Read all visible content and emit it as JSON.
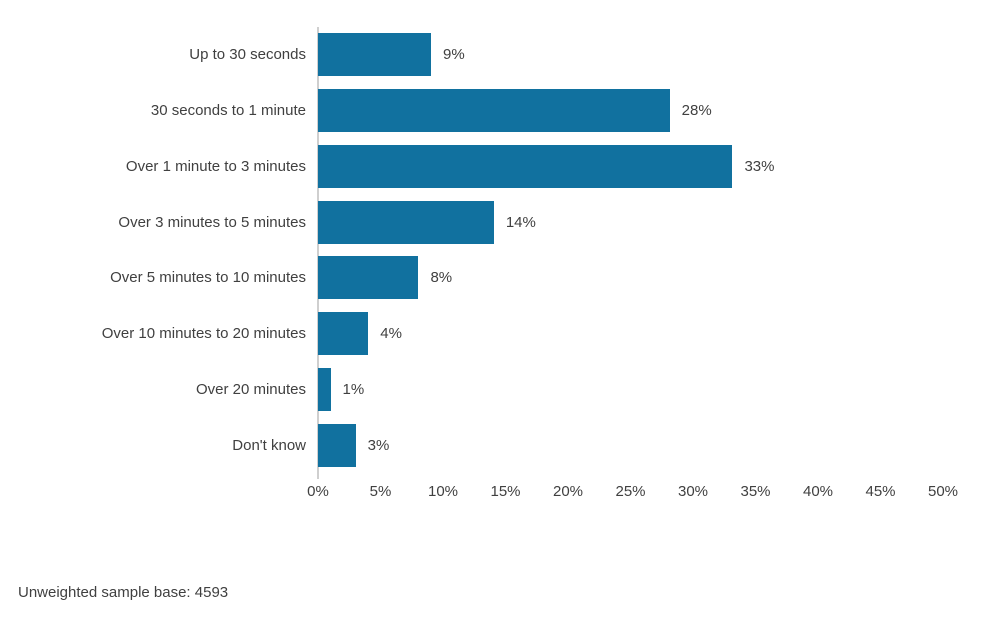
{
  "chart_data": {
    "type": "bar",
    "orientation": "horizontal",
    "categories": [
      "Up to 30 seconds",
      "30 seconds to 1 minute",
      "Over 1 minute to 3 minutes",
      "Over 3 minutes to 5 minutes",
      "Over 5 minutes to 10 minutes",
      "Over 10 minutes to 20 minutes",
      "Over 20 minutes",
      "Don't know"
    ],
    "values": [
      9,
      28,
      33,
      14,
      8,
      4,
      1,
      3
    ],
    "value_labels": [
      "9%",
      "28%",
      "33%",
      "14%",
      "8%",
      "4%",
      "1%",
      "3%"
    ],
    "x_ticks": [
      "0%",
      "5%",
      "10%",
      "15%",
      "20%",
      "25%",
      "30%",
      "35%",
      "40%",
      "45%",
      "50%"
    ],
    "xlim": [
      0,
      50
    ],
    "title": "",
    "xlabel": "",
    "ylabel": "",
    "grid": false,
    "legend": false,
    "bar_color": "#11719f",
    "axis_line_color": "#cfcfcf",
    "text_color": "#404040"
  },
  "footer": {
    "note": "Unweighted sample base: 4593"
  }
}
